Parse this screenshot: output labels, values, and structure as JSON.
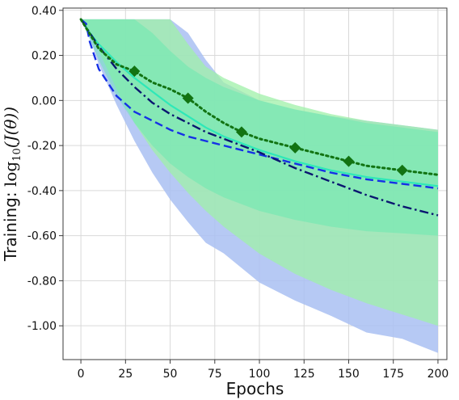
{
  "chart_data": {
    "type": "line",
    "xlabel": "Epochs",
    "ylabel": {
      "prefix": "Training: ",
      "math": "log",
      "math_sub": "10",
      "math_rest": "(J(θ))"
    },
    "xlim": [
      -10,
      205
    ],
    "ylim": [
      -1.15,
      0.41
    ],
    "xticks": [
      0,
      25,
      50,
      75,
      100,
      125,
      150,
      175,
      200
    ],
    "xtick_labels": [
      "0",
      "25",
      "50",
      "75",
      "100",
      "125",
      "150",
      "175",
      "200"
    ],
    "yticks": [
      0.4,
      0.2,
      0.0,
      -0.2,
      -0.4,
      -0.6,
      -0.8,
      -1.0
    ],
    "ytick_labels": [
      "0.40",
      "0.20",
      "0.00",
      "-0.20",
      "-0.40",
      "-0.60",
      "-0.80",
      "-1.00"
    ],
    "grid": true,
    "bands": [
      {
        "color": "#a9c0f2",
        "opacity": 0.85,
        "x": [
          0,
          5,
          10,
          20,
          30,
          40,
          50,
          60,
          70,
          80,
          100,
          120,
          140,
          160,
          180,
          200
        ],
        "upper": [
          0.36,
          0.36,
          0.36,
          0.36,
          0.36,
          0.36,
          0.36,
          0.3,
          0.18,
          0.08,
          0.0,
          -0.04,
          -0.07,
          -0.09,
          -0.11,
          -0.13
        ],
        "lower": [
          0.36,
          0.28,
          0.16,
          -0.02,
          -0.18,
          -0.32,
          -0.44,
          -0.54,
          -0.62,
          -0.69,
          -0.8,
          -0.89,
          -0.96,
          -1.02,
          -1.07,
          -1.11
        ]
      },
      {
        "color": "#9ff0a8",
        "opacity": 0.75,
        "x": [
          0,
          10,
          20,
          30,
          40,
          50,
          60,
          70,
          80,
          100,
          120,
          140,
          160,
          180,
          200
        ],
        "upper": [
          0.36,
          0.36,
          0.36,
          0.36,
          0.36,
          0.36,
          0.25,
          0.15,
          0.1,
          0.03,
          -0.02,
          -0.06,
          -0.09,
          -0.11,
          -0.13
        ],
        "lower": [
          0.36,
          0.22,
          0.05,
          -0.1,
          -0.22,
          -0.32,
          -0.41,
          -0.49,
          -0.56,
          -0.68,
          -0.77,
          -0.84,
          -0.9,
          -0.95,
          -1.0
        ]
      },
      {
        "color": "#5fe8b0",
        "opacity": 0.45,
        "x": [
          0,
          10,
          20,
          30,
          40,
          50,
          60,
          70,
          80,
          100,
          120,
          140,
          160,
          180,
          200
        ],
        "upper": [
          0.36,
          0.36,
          0.36,
          0.36,
          0.3,
          0.22,
          0.15,
          0.1,
          0.06,
          0.0,
          -0.04,
          -0.07,
          -0.1,
          -0.12,
          -0.14
        ],
        "lower": [
          0.36,
          0.18,
          0.02,
          -0.1,
          -0.2,
          -0.28,
          -0.34,
          -0.39,
          -0.43,
          -0.49,
          -0.53,
          -0.56,
          -0.58,
          -0.59,
          -0.6
        ]
      }
    ],
    "series": [
      {
        "style": "solid",
        "color": "#2ee8b8",
        "width": 2.2,
        "x": [
          0,
          5,
          10,
          20,
          30,
          40,
          50,
          60,
          70,
          80,
          90,
          100,
          120,
          140,
          160,
          180,
          200
        ],
        "y": [
          0.36,
          0.3,
          0.25,
          0.17,
          0.1,
          0.04,
          -0.02,
          -0.07,
          -0.12,
          -0.16,
          -0.19,
          -0.22,
          -0.27,
          -0.31,
          -0.34,
          -0.36,
          -0.38
        ]
      },
      {
        "style": "dashed",
        "color": "#1530e6",
        "width": 2.4,
        "x": [
          0,
          3,
          5,
          10,
          20,
          30,
          40,
          50,
          60,
          70,
          80,
          90,
          100,
          120,
          140,
          160,
          180,
          200
        ],
        "y": [
          0.36,
          0.34,
          0.26,
          0.14,
          0.02,
          -0.05,
          -0.09,
          -0.13,
          -0.16,
          -0.18,
          -0.2,
          -0.22,
          -0.24,
          -0.28,
          -0.32,
          -0.35,
          -0.37,
          -0.39
        ]
      },
      {
        "style": "dashdot",
        "color": "#0a1670",
        "width": 2.4,
        "x": [
          0,
          5,
          10,
          20,
          30,
          40,
          50,
          60,
          70,
          80,
          90,
          100,
          120,
          140,
          160,
          180,
          200
        ],
        "y": [
          0.36,
          0.3,
          0.24,
          0.14,
          0.06,
          -0.01,
          -0.06,
          -0.1,
          -0.14,
          -0.17,
          -0.2,
          -0.23,
          -0.3,
          -0.36,
          -0.42,
          -0.47,
          -0.51
        ]
      },
      {
        "style": "dotted",
        "color": "#127312",
        "width": 3,
        "x": [
          0,
          10,
          20,
          30,
          40,
          50,
          60,
          70,
          80,
          90,
          100,
          120,
          140,
          150,
          160,
          180,
          200
        ],
        "y": [
          0.36,
          0.23,
          0.16,
          0.13,
          0.08,
          0.05,
          0.01,
          -0.05,
          -0.1,
          -0.14,
          -0.17,
          -0.21,
          -0.25,
          -0.27,
          -0.29,
          -0.31,
          -0.33
        ],
        "markers": {
          "shape": "diamond",
          "color": "#127312",
          "x": [
            30,
            60,
            90,
            120,
            150,
            180
          ],
          "y": [
            0.13,
            0.01,
            -0.14,
            -0.21,
            -0.27,
            -0.31
          ]
        }
      }
    ]
  }
}
